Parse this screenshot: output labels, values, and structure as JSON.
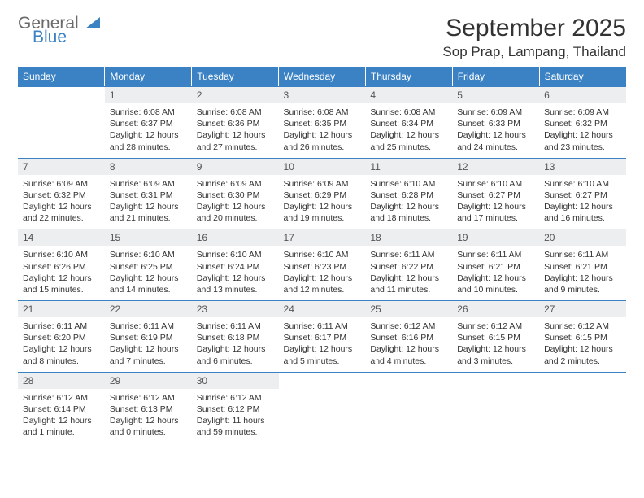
{
  "brand": {
    "part1": "General",
    "part2": "Blue"
  },
  "title": "September 2025",
  "location": "Sop Prap, Lampang, Thailand",
  "colors": {
    "accent": "#3b82c4",
    "daynum_bg": "#eceef0",
    "text": "#333333"
  },
  "weekdays": [
    "Sunday",
    "Monday",
    "Tuesday",
    "Wednesday",
    "Thursday",
    "Friday",
    "Saturday"
  ],
  "weeks": [
    [
      null,
      {
        "n": "1",
        "sr": "Sunrise: 6:08 AM",
        "ss": "Sunset: 6:37 PM",
        "d1": "Daylight: 12 hours",
        "d2": "and 28 minutes."
      },
      {
        "n": "2",
        "sr": "Sunrise: 6:08 AM",
        "ss": "Sunset: 6:36 PM",
        "d1": "Daylight: 12 hours",
        "d2": "and 27 minutes."
      },
      {
        "n": "3",
        "sr": "Sunrise: 6:08 AM",
        "ss": "Sunset: 6:35 PM",
        "d1": "Daylight: 12 hours",
        "d2": "and 26 minutes."
      },
      {
        "n": "4",
        "sr": "Sunrise: 6:08 AM",
        "ss": "Sunset: 6:34 PM",
        "d1": "Daylight: 12 hours",
        "d2": "and 25 minutes."
      },
      {
        "n": "5",
        "sr": "Sunrise: 6:09 AM",
        "ss": "Sunset: 6:33 PM",
        "d1": "Daylight: 12 hours",
        "d2": "and 24 minutes."
      },
      {
        "n": "6",
        "sr": "Sunrise: 6:09 AM",
        "ss": "Sunset: 6:32 PM",
        "d1": "Daylight: 12 hours",
        "d2": "and 23 minutes."
      }
    ],
    [
      {
        "n": "7",
        "sr": "Sunrise: 6:09 AM",
        "ss": "Sunset: 6:32 PM",
        "d1": "Daylight: 12 hours",
        "d2": "and 22 minutes."
      },
      {
        "n": "8",
        "sr": "Sunrise: 6:09 AM",
        "ss": "Sunset: 6:31 PM",
        "d1": "Daylight: 12 hours",
        "d2": "and 21 minutes."
      },
      {
        "n": "9",
        "sr": "Sunrise: 6:09 AM",
        "ss": "Sunset: 6:30 PM",
        "d1": "Daylight: 12 hours",
        "d2": "and 20 minutes."
      },
      {
        "n": "10",
        "sr": "Sunrise: 6:09 AM",
        "ss": "Sunset: 6:29 PM",
        "d1": "Daylight: 12 hours",
        "d2": "and 19 minutes."
      },
      {
        "n": "11",
        "sr": "Sunrise: 6:10 AM",
        "ss": "Sunset: 6:28 PM",
        "d1": "Daylight: 12 hours",
        "d2": "and 18 minutes."
      },
      {
        "n": "12",
        "sr": "Sunrise: 6:10 AM",
        "ss": "Sunset: 6:27 PM",
        "d1": "Daylight: 12 hours",
        "d2": "and 17 minutes."
      },
      {
        "n": "13",
        "sr": "Sunrise: 6:10 AM",
        "ss": "Sunset: 6:27 PM",
        "d1": "Daylight: 12 hours",
        "d2": "and 16 minutes."
      }
    ],
    [
      {
        "n": "14",
        "sr": "Sunrise: 6:10 AM",
        "ss": "Sunset: 6:26 PM",
        "d1": "Daylight: 12 hours",
        "d2": "and 15 minutes."
      },
      {
        "n": "15",
        "sr": "Sunrise: 6:10 AM",
        "ss": "Sunset: 6:25 PM",
        "d1": "Daylight: 12 hours",
        "d2": "and 14 minutes."
      },
      {
        "n": "16",
        "sr": "Sunrise: 6:10 AM",
        "ss": "Sunset: 6:24 PM",
        "d1": "Daylight: 12 hours",
        "d2": "and 13 minutes."
      },
      {
        "n": "17",
        "sr": "Sunrise: 6:10 AM",
        "ss": "Sunset: 6:23 PM",
        "d1": "Daylight: 12 hours",
        "d2": "and 12 minutes."
      },
      {
        "n": "18",
        "sr": "Sunrise: 6:11 AM",
        "ss": "Sunset: 6:22 PM",
        "d1": "Daylight: 12 hours",
        "d2": "and 11 minutes."
      },
      {
        "n": "19",
        "sr": "Sunrise: 6:11 AM",
        "ss": "Sunset: 6:21 PM",
        "d1": "Daylight: 12 hours",
        "d2": "and 10 minutes."
      },
      {
        "n": "20",
        "sr": "Sunrise: 6:11 AM",
        "ss": "Sunset: 6:21 PM",
        "d1": "Daylight: 12 hours",
        "d2": "and 9 minutes."
      }
    ],
    [
      {
        "n": "21",
        "sr": "Sunrise: 6:11 AM",
        "ss": "Sunset: 6:20 PM",
        "d1": "Daylight: 12 hours",
        "d2": "and 8 minutes."
      },
      {
        "n": "22",
        "sr": "Sunrise: 6:11 AM",
        "ss": "Sunset: 6:19 PM",
        "d1": "Daylight: 12 hours",
        "d2": "and 7 minutes."
      },
      {
        "n": "23",
        "sr": "Sunrise: 6:11 AM",
        "ss": "Sunset: 6:18 PM",
        "d1": "Daylight: 12 hours",
        "d2": "and 6 minutes."
      },
      {
        "n": "24",
        "sr": "Sunrise: 6:11 AM",
        "ss": "Sunset: 6:17 PM",
        "d1": "Daylight: 12 hours",
        "d2": "and 5 minutes."
      },
      {
        "n": "25",
        "sr": "Sunrise: 6:12 AM",
        "ss": "Sunset: 6:16 PM",
        "d1": "Daylight: 12 hours",
        "d2": "and 4 minutes."
      },
      {
        "n": "26",
        "sr": "Sunrise: 6:12 AM",
        "ss": "Sunset: 6:15 PM",
        "d1": "Daylight: 12 hours",
        "d2": "and 3 minutes."
      },
      {
        "n": "27",
        "sr": "Sunrise: 6:12 AM",
        "ss": "Sunset: 6:15 PM",
        "d1": "Daylight: 12 hours",
        "d2": "and 2 minutes."
      }
    ],
    [
      {
        "n": "28",
        "sr": "Sunrise: 6:12 AM",
        "ss": "Sunset: 6:14 PM",
        "d1": "Daylight: 12 hours",
        "d2": "and 1 minute."
      },
      {
        "n": "29",
        "sr": "Sunrise: 6:12 AM",
        "ss": "Sunset: 6:13 PM",
        "d1": "Daylight: 12 hours",
        "d2": "and 0 minutes."
      },
      {
        "n": "30",
        "sr": "Sunrise: 6:12 AM",
        "ss": "Sunset: 6:12 PM",
        "d1": "Daylight: 11 hours",
        "d2": "and 59 minutes."
      },
      null,
      null,
      null,
      null
    ]
  ]
}
